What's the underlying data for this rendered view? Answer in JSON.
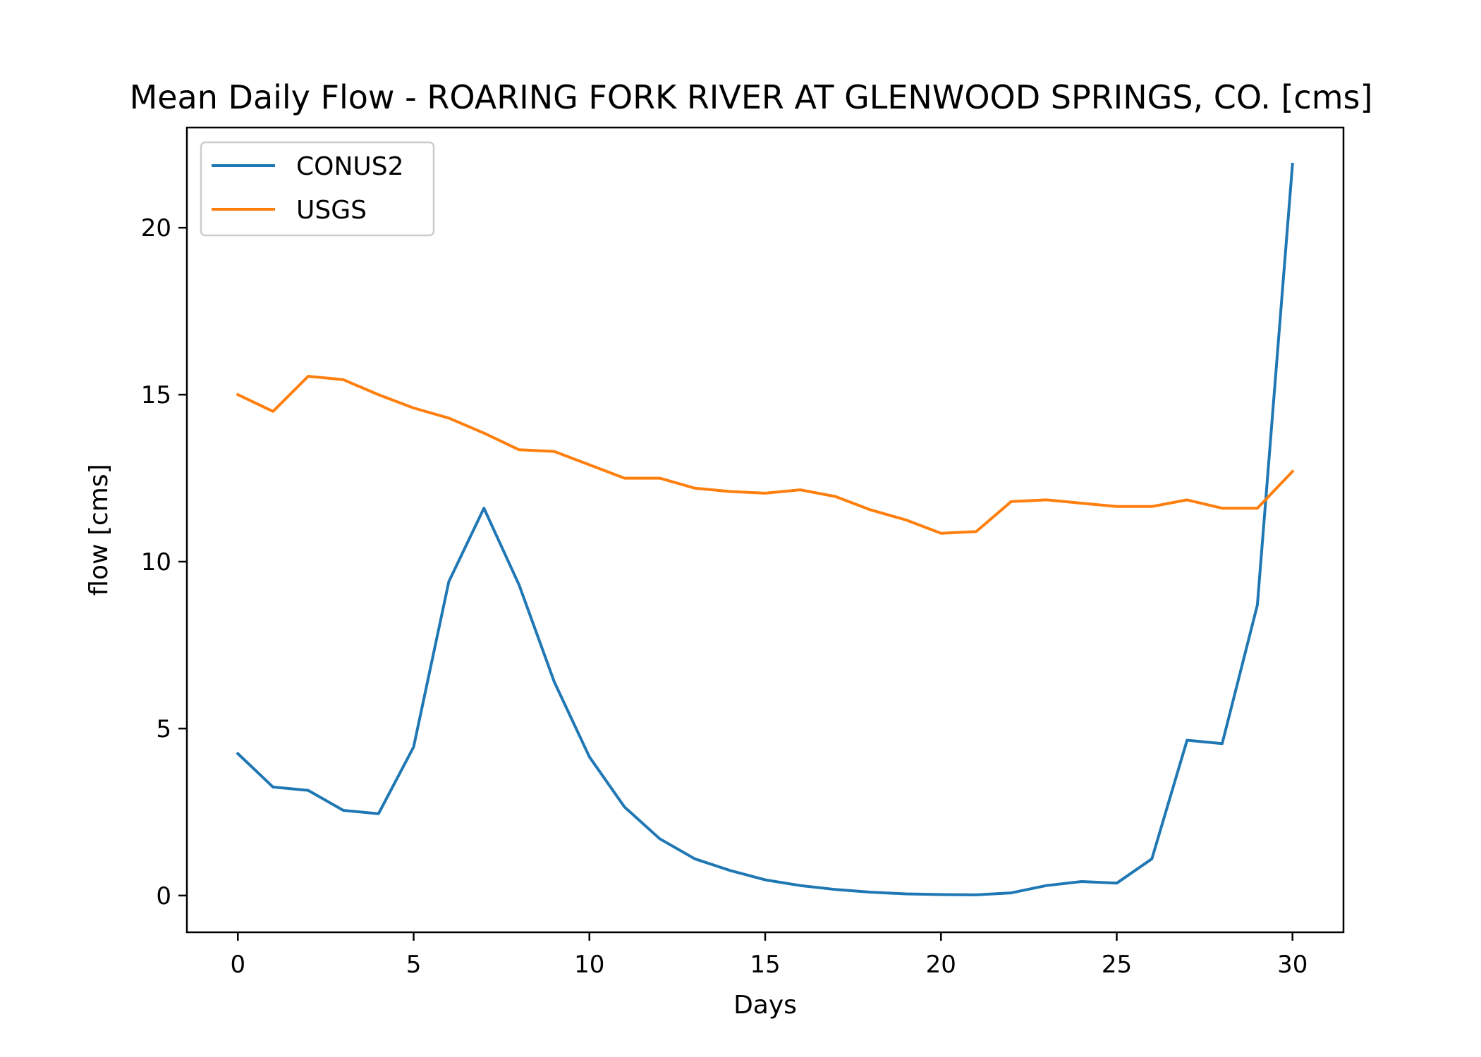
{
  "chart_data": {
    "type": "line",
    "title": "Mean Daily Flow - ROARING FORK RIVER AT GLENWOOD SPRINGS, CO. [cms]",
    "xlabel": "Days",
    "ylabel": "flow [cms]",
    "xlim": [
      -1.45,
      31.45
    ],
    "ylim": [
      -1.1,
      23.0
    ],
    "xticks": [
      0,
      5,
      10,
      15,
      20,
      25,
      30
    ],
    "yticks": [
      0,
      5,
      10,
      15,
      20
    ],
    "grid": false,
    "legend": "upper left",
    "x": [
      0,
      1,
      2,
      3,
      4,
      5,
      6,
      7,
      8,
      9,
      10,
      11,
      12,
      13,
      14,
      15,
      16,
      17,
      18,
      19,
      20,
      21,
      22,
      23,
      24,
      25,
      26,
      27,
      28,
      29,
      30
    ],
    "series": [
      {
        "name": "CONUS2",
        "color": "#1f77b4",
        "values": [
          4.25,
          3.25,
          3.15,
          2.55,
          2.45,
          4.45,
          9.4,
          11.6,
          9.3,
          6.4,
          4.15,
          2.65,
          1.7,
          1.1,
          0.75,
          0.47,
          0.3,
          0.18,
          0.1,
          0.05,
          0.03,
          0.02,
          0.08,
          0.3,
          0.42,
          0.37,
          1.1,
          4.65,
          4.55,
          8.7,
          21.9
        ]
      },
      {
        "name": "USGS",
        "color": "#ff7f0e",
        "values": [
          15.0,
          14.5,
          15.55,
          15.45,
          15.0,
          14.6,
          14.3,
          13.85,
          13.35,
          13.3,
          12.9,
          12.5,
          12.5,
          12.2,
          12.1,
          12.05,
          12.15,
          11.95,
          11.55,
          11.25,
          10.85,
          10.9,
          11.8,
          11.85,
          11.75,
          11.65,
          11.65,
          11.85,
          11.6,
          11.6,
          12.7
        ]
      }
    ]
  }
}
